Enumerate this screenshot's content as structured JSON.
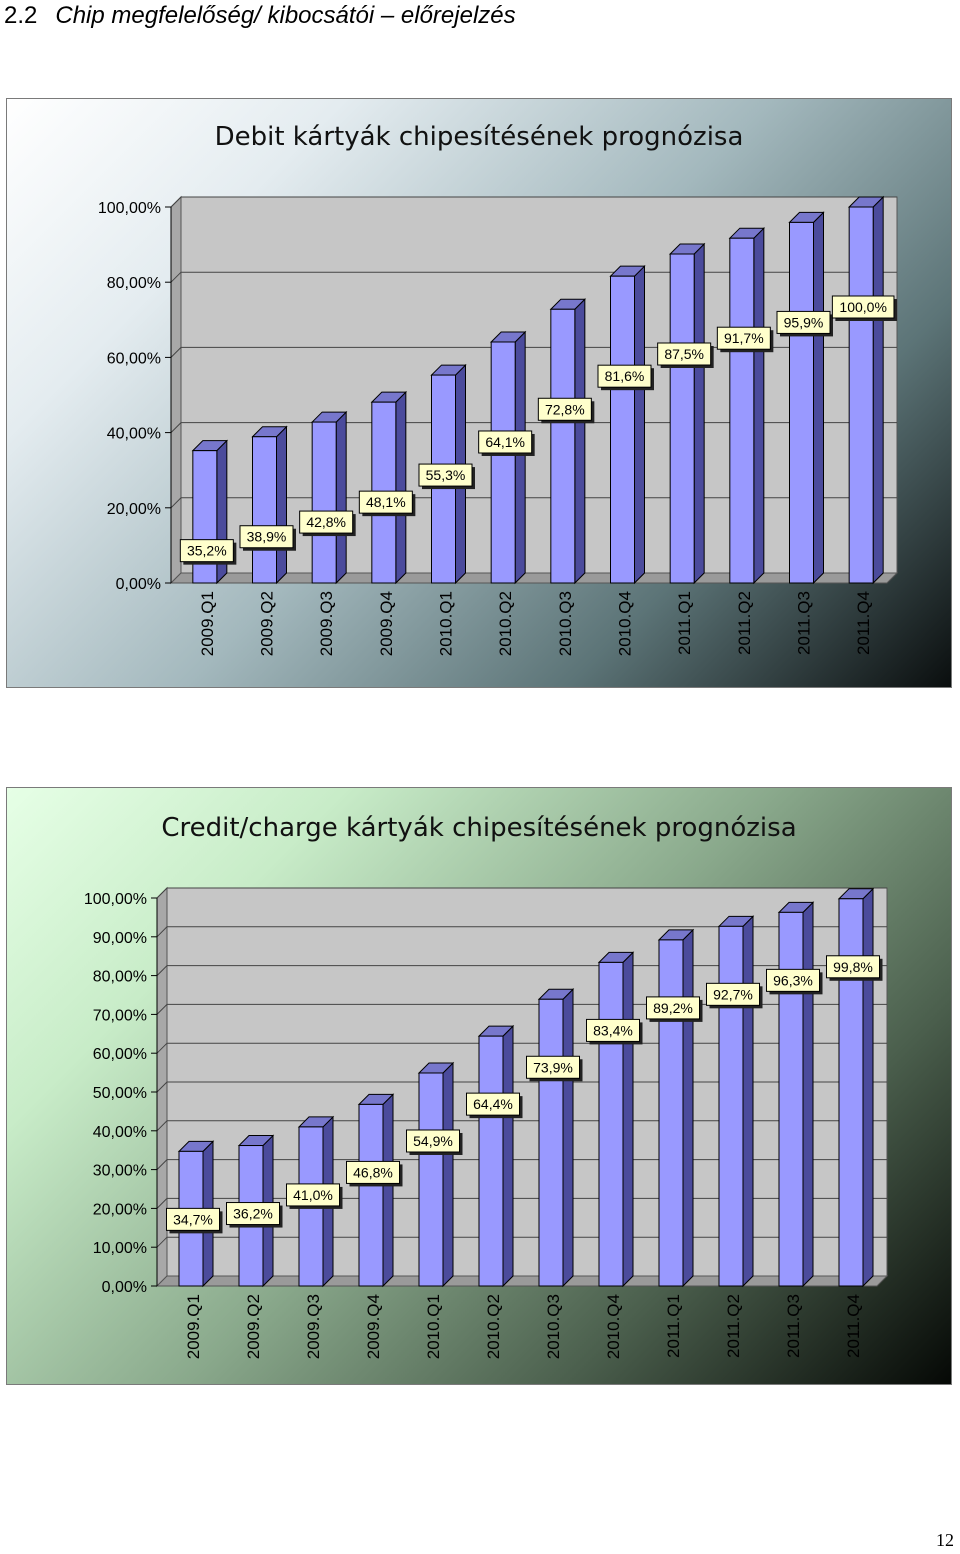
{
  "heading": {
    "number": "2.2",
    "text": "Chip megfelelőség/ kibocsátói – előrejelzés"
  },
  "page_number": "12",
  "chart_data": [
    {
      "type": "bar",
      "title": "Debit kártyák chipesítésének prognózisa",
      "categories": [
        "2009.Q1",
        "2009.Q2",
        "2009.Q3",
        "2009.Q4",
        "2010.Q1",
        "2010.Q2",
        "2010.Q3",
        "2010.Q4",
        "2011.Q1",
        "2011.Q2",
        "2011.Q3",
        "2011.Q4"
      ],
      "values": [
        35.2,
        38.9,
        42.8,
        48.1,
        55.3,
        64.1,
        72.8,
        81.6,
        87.5,
        91.7,
        95.9,
        100.0
      ],
      "data_labels": [
        "35,2%",
        "38,9%",
        "42,8%",
        "48,1%",
        "55,3%",
        "64,1%",
        "72,8%",
        "81,6%",
        "87,5%",
        "91,7%",
        "95,9%",
        "100,0%"
      ],
      "yticks": [
        "0,00%",
        "20,00%",
        "40,00%",
        "60,00%",
        "80,00%",
        "100,00%"
      ],
      "ylim": [
        0,
        100
      ],
      "grid": true,
      "bar_color": "#9999ff"
    },
    {
      "type": "bar",
      "title": "Credit/charge kártyák chipesítésének prognózisa",
      "categories": [
        "2009.Q1",
        "2009.Q2",
        "2009.Q3",
        "2009.Q4",
        "2010.Q1",
        "2010.Q2",
        "2010.Q3",
        "2010.Q4",
        "2011.Q1",
        "2011.Q2",
        "2011.Q3",
        "2011.Q4"
      ],
      "values": [
        34.7,
        36.2,
        41.0,
        46.8,
        54.9,
        64.4,
        73.9,
        83.4,
        89.2,
        92.7,
        96.3,
        99.8
      ],
      "data_labels": [
        "34,7%",
        "36,2%",
        "41,0%",
        "46,8%",
        "54,9%",
        "64,4%",
        "73,9%",
        "83,4%",
        "89,2%",
        "92,7%",
        "96,3%",
        "99,8%"
      ],
      "yticks": [
        "0,00%",
        "10,00%",
        "20,00%",
        "30,00%",
        "40,00%",
        "50,00%",
        "60,00%",
        "70,00%",
        "80,00%",
        "90,00%",
        "100,00%"
      ],
      "ylim": [
        0,
        100
      ],
      "grid": true,
      "bar_color": "#9999ff"
    }
  ]
}
